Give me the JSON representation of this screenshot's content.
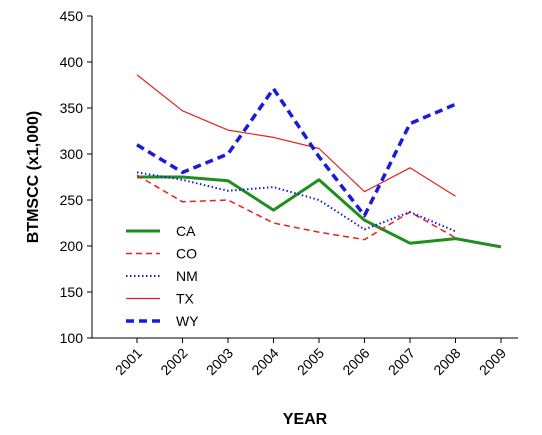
{
  "chart_data": {
    "type": "line",
    "xlabel": "YEAR",
    "ylabel": "BTMSCC (x1,000)",
    "ylim": [
      100,
      450
    ],
    "yticks": [
      100,
      150,
      200,
      250,
      300,
      350,
      400,
      450
    ],
    "categories": [
      "2001",
      "2002",
      "2003",
      "2004",
      "2005",
      "2006",
      "2007",
      "2008",
      "2009"
    ],
    "grid": false,
    "legend_position": "lower-left",
    "series": [
      {
        "name": "CA",
        "color": "#1e8f1e",
        "style": "solid-thick",
        "values": [
          275,
          275,
          271,
          239,
          272,
          228,
          203,
          208,
          199
        ]
      },
      {
        "name": "CO",
        "color": "#e62020",
        "style": "dashed",
        "values": [
          277,
          248,
          250,
          225,
          215,
          207,
          237,
          209,
          null
        ]
      },
      {
        "name": "NM",
        "color": "#1a1adb",
        "style": "dotted",
        "values": [
          280,
          272,
          260,
          264,
          250,
          218,
          237,
          216,
          null
        ]
      },
      {
        "name": "TX",
        "color": "#e62020",
        "style": "solid-thin",
        "values": [
          386,
          347,
          326,
          318,
          306,
          259,
          285,
          254,
          null
        ]
      },
      {
        "name": "WY",
        "color": "#1a1adb",
        "style": "dashed-thick",
        "values": [
          310,
          280,
          300,
          371,
          297,
          233,
          333,
          354,
          null
        ]
      }
    ]
  }
}
